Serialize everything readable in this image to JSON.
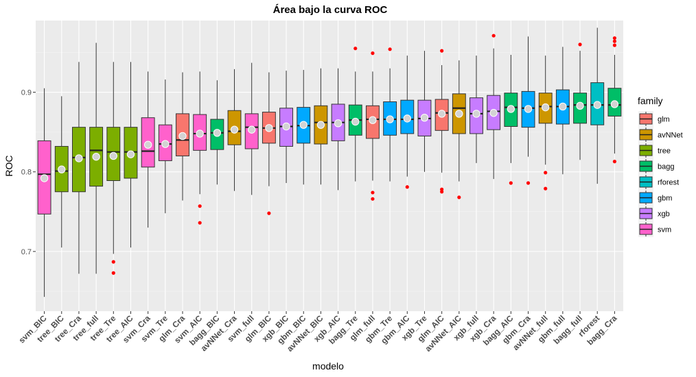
{
  "chart_data": {
    "type": "boxplot",
    "title": "Área bajo la curva ROC",
    "xlabel": "modelo",
    "ylabel": "ROC",
    "ylim": [
      0.625,
      0.99
    ],
    "yticks": [
      0.7,
      0.8,
      0.9
    ],
    "ytick_labels": [
      "0.7",
      "0.8",
      "0.9"
    ],
    "grid": true,
    "legend": {
      "title": "family",
      "placement": "right",
      "items": [
        {
          "name": "glm",
          "color": "#F8766D"
        },
        {
          "name": "avNNet",
          "color": "#CD9600"
        },
        {
          "name": "tree",
          "color": "#7CAE00"
        },
        {
          "name": "bagg",
          "color": "#00BE67"
        },
        {
          "name": "rforest",
          "color": "#00BFC4"
        },
        {
          "name": "gbm",
          "color": "#00A9FF"
        },
        {
          "name": "xgb",
          "color": "#C77CFF"
        },
        {
          "name": "svm",
          "color": "#FF61CC"
        }
      ]
    },
    "outlier_color": "#FF0000",
    "mean_marker_color": "#D3D3D3",
    "boxes": [
      {
        "label": "svm_BIC",
        "family": "svm",
        "whisker_low": 0.643,
        "q1": 0.747,
        "median": 0.797,
        "q3": 0.839,
        "whisker_high": 0.905,
        "mean": 0.792,
        "outliers": []
      },
      {
        "label": "tree_BIC",
        "family": "tree",
        "whisker_low": 0.705,
        "q1": 0.775,
        "median": 0.801,
        "q3": 0.832,
        "whisker_high": 0.895,
        "mean": 0.803,
        "outliers": []
      },
      {
        "label": "tree_Cra",
        "family": "tree",
        "whisker_low": 0.672,
        "q1": 0.775,
        "median": 0.818,
        "q3": 0.856,
        "whisker_high": 0.938,
        "mean": 0.817,
        "outliers": []
      },
      {
        "label": "tree_full",
        "family": "tree",
        "whisker_low": 0.672,
        "q1": 0.782,
        "median": 0.827,
        "q3": 0.856,
        "whisker_high": 0.962,
        "mean": 0.819,
        "outliers": []
      },
      {
        "label": "tree_Tre",
        "family": "tree",
        "whisker_low": 0.697,
        "q1": 0.789,
        "median": 0.825,
        "q3": 0.856,
        "whisker_high": 0.938,
        "mean": 0.82,
        "outliers": [
          0.687,
          0.673
        ]
      },
      {
        "label": "tree_AIC",
        "family": "tree",
        "whisker_low": 0.705,
        "q1": 0.792,
        "median": 0.825,
        "q3": 0.856,
        "whisker_high": 0.938,
        "mean": 0.822,
        "outliers": []
      },
      {
        "label": "svm_Cra",
        "family": "svm",
        "whisker_low": 0.73,
        "q1": 0.806,
        "median": 0.826,
        "q3": 0.868,
        "whisker_high": 0.926,
        "mean": 0.834,
        "outliers": []
      },
      {
        "label": "svm_Tre",
        "family": "svm",
        "whisker_low": 0.748,
        "q1": 0.814,
        "median": 0.835,
        "q3": 0.859,
        "whisker_high": 0.916,
        "mean": 0.835,
        "outliers": []
      },
      {
        "label": "glm_Cra",
        "family": "glm",
        "whisker_low": 0.764,
        "q1": 0.82,
        "median": 0.84,
        "q3": 0.873,
        "whisker_high": 0.925,
        "mean": 0.845,
        "outliers": []
      },
      {
        "label": "svm_AIC",
        "family": "svm",
        "whisker_low": 0.772,
        "q1": 0.827,
        "median": 0.848,
        "q3": 0.872,
        "whisker_high": 0.926,
        "mean": 0.848,
        "outliers": [
          0.757,
          0.736
        ]
      },
      {
        "label": "bagg_BIC",
        "family": "bagg",
        "whisker_low": 0.784,
        "q1": 0.828,
        "median": 0.849,
        "q3": 0.866,
        "whisker_high": 0.915,
        "mean": 0.849,
        "outliers": []
      },
      {
        "label": "avNNet_Cra",
        "family": "avNNet",
        "whisker_low": 0.776,
        "q1": 0.834,
        "median": 0.851,
        "q3": 0.877,
        "whisker_high": 0.929,
        "mean": 0.853,
        "outliers": []
      },
      {
        "label": "svm_full",
        "family": "svm",
        "whisker_low": 0.771,
        "q1": 0.829,
        "median": 0.856,
        "q3": 0.873,
        "whisker_high": 0.937,
        "mean": 0.853,
        "outliers": []
      },
      {
        "label": "glm_BIC",
        "family": "glm",
        "whisker_low": 0.782,
        "q1": 0.836,
        "median": 0.855,
        "q3": 0.875,
        "whisker_high": 0.925,
        "mean": 0.855,
        "outliers": [
          0.748
        ]
      },
      {
        "label": "xgb_BIC",
        "family": "xgb",
        "whisker_low": 0.786,
        "q1": 0.832,
        "median": 0.857,
        "q3": 0.88,
        "whisker_high": 0.927,
        "mean": 0.857,
        "outliers": []
      },
      {
        "label": "gbm_BIC",
        "family": "gbm",
        "whisker_low": 0.784,
        "q1": 0.836,
        "median": 0.858,
        "q3": 0.881,
        "whisker_high": 0.928,
        "mean": 0.859,
        "outliers": []
      },
      {
        "label": "avNNet_BIC",
        "family": "avNNet",
        "whisker_low": 0.784,
        "q1": 0.835,
        "median": 0.862,
        "q3": 0.883,
        "whisker_high": 0.93,
        "mean": 0.859,
        "outliers": []
      },
      {
        "label": "xgb_AIC",
        "family": "xgb",
        "whisker_low": 0.777,
        "q1": 0.839,
        "median": 0.862,
        "q3": 0.885,
        "whisker_high": 0.93,
        "mean": 0.861,
        "outliers": []
      },
      {
        "label": "bagg_Tre",
        "family": "bagg",
        "whisker_low": 0.788,
        "q1": 0.846,
        "median": 0.865,
        "q3": 0.884,
        "whisker_high": 0.926,
        "mean": 0.863,
        "outliers": [
          0.955
        ]
      },
      {
        "label": "glm_full",
        "family": "glm",
        "whisker_low": 0.789,
        "q1": 0.842,
        "median": 0.866,
        "q3": 0.883,
        "whisker_high": 0.926,
        "mean": 0.865,
        "outliers": [
          0.949,
          0.774,
          0.766
        ]
      },
      {
        "label": "gbm_Tre",
        "family": "gbm",
        "whisker_low": 0.788,
        "q1": 0.846,
        "median": 0.866,
        "q3": 0.888,
        "whisker_high": 0.93,
        "mean": 0.866,
        "outliers": [
          0.954
        ]
      },
      {
        "label": "gbm_AIC",
        "family": "gbm",
        "whisker_low": 0.794,
        "q1": 0.848,
        "median": 0.866,
        "q3": 0.89,
        "whisker_high": 0.946,
        "mean": 0.867,
        "outliers": [
          0.781
        ]
      },
      {
        "label": "xgb_Tre",
        "family": "xgb",
        "whisker_low": 0.8,
        "q1": 0.845,
        "median": 0.867,
        "q3": 0.89,
        "whisker_high": 0.952,
        "mean": 0.868,
        "outliers": []
      },
      {
        "label": "glm_AIC",
        "family": "glm",
        "whisker_low": 0.799,
        "q1": 0.852,
        "median": 0.874,
        "q3": 0.891,
        "whisker_high": 0.934,
        "mean": 0.873,
        "outliers": [
          0.952,
          0.778,
          0.775
        ]
      },
      {
        "label": "avNNet_AIC",
        "family": "avNNet",
        "whisker_low": 0.788,
        "q1": 0.848,
        "median": 0.88,
        "q3": 0.898,
        "whisker_high": 0.94,
        "mean": 0.873,
        "outliers": [
          0.768
        ]
      },
      {
        "label": "xgb_full",
        "family": "xgb",
        "whisker_low": 0.811,
        "q1": 0.848,
        "median": 0.873,
        "q3": 0.893,
        "whisker_high": 0.946,
        "mean": 0.873,
        "outliers": []
      },
      {
        "label": "xgb_Cra",
        "family": "xgb",
        "whisker_low": 0.791,
        "q1": 0.853,
        "median": 0.876,
        "q3": 0.896,
        "whisker_high": 0.955,
        "mean": 0.874,
        "outliers": [
          0.971
        ]
      },
      {
        "label": "bagg_AIC",
        "family": "bagg",
        "whisker_low": 0.811,
        "q1": 0.857,
        "median": 0.881,
        "q3": 0.899,
        "whisker_high": 0.947,
        "mean": 0.879,
        "outliers": [
          0.786
        ]
      },
      {
        "label": "gbm_Cra",
        "family": "gbm",
        "whisker_low": 0.819,
        "q1": 0.856,
        "median": 0.88,
        "q3": 0.901,
        "whisker_high": 0.97,
        "mean": 0.879,
        "outliers": [
          0.786
        ]
      },
      {
        "label": "avNNet_full",
        "family": "avNNet",
        "whisker_low": 0.809,
        "q1": 0.861,
        "median": 0.882,
        "q3": 0.899,
        "whisker_high": 0.946,
        "mean": 0.881,
        "outliers": [
          0.799,
          0.779
        ]
      },
      {
        "label": "gbm_full",
        "family": "gbm",
        "whisker_low": 0.797,
        "q1": 0.86,
        "median": 0.882,
        "q3": 0.903,
        "whisker_high": 0.957,
        "mean": 0.882,
        "outliers": []
      },
      {
        "label": "bagg_full",
        "family": "bagg",
        "whisker_low": 0.815,
        "q1": 0.861,
        "median": 0.884,
        "q3": 0.899,
        "whisker_high": 0.952,
        "mean": 0.883,
        "outliers": [
          0.96
        ]
      },
      {
        "label": "rforest",
        "family": "rforest",
        "whisker_low": 0.785,
        "q1": 0.859,
        "median": 0.884,
        "q3": 0.912,
        "whisker_high": 0.981,
        "mean": 0.884,
        "outliers": []
      },
      {
        "label": "bagg_Cra",
        "family": "bagg",
        "whisker_low": 0.823,
        "q1": 0.87,
        "median": 0.884,
        "q3": 0.905,
        "whisker_high": 0.947,
        "mean": 0.885,
        "outliers": [
          0.968,
          0.964,
          0.959,
          0.813
        ]
      }
    ]
  }
}
